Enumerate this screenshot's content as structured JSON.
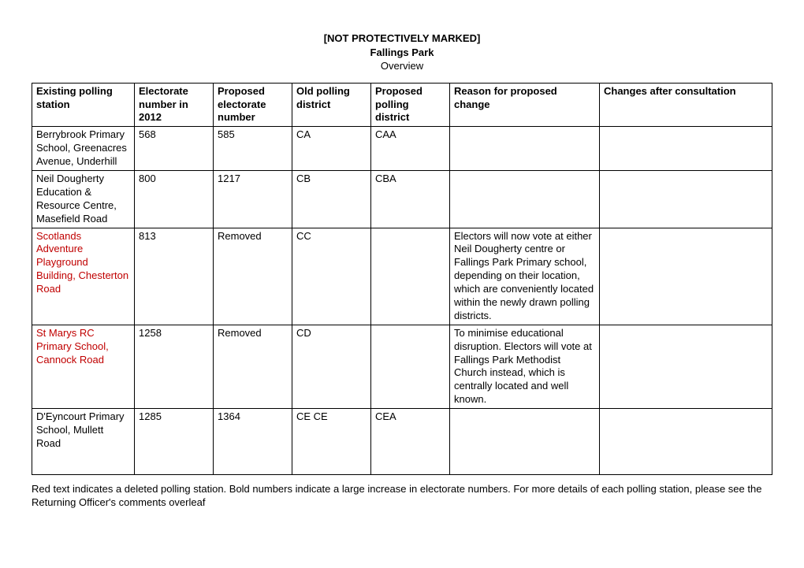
{
  "header": {
    "marking": "[NOT PROTECTIVELY MARKED]",
    "title": "Fallings Park",
    "subtitle": "Overview"
  },
  "columns": [
    "Existing polling station",
    "Electorate number in 2012",
    "Proposed electorate number",
    "Old polling district",
    "Proposed polling district",
    "Reason for proposed change",
    "Changes after consultation"
  ],
  "rows": [
    {
      "station": "Berrybrook Primary School, Greenacres Avenue, Underhill",
      "station_red": false,
      "elec2012": "568",
      "proposed": "585",
      "old": "CA",
      "newdist": "CAA",
      "reason": "",
      "changes": ""
    },
    {
      "station": "Neil Dougherty Education & Resource Centre, Masefield Road",
      "station_red": false,
      "elec2012": "800",
      "proposed": "1217",
      "old": "CB",
      "newdist": "CBA",
      "reason": "",
      "changes": ""
    },
    {
      "station": "Scotlands Adventure Playground Building, Chesterton Road",
      "station_red": true,
      "elec2012": "813",
      "proposed": "Removed",
      "old": "CC",
      "newdist": "",
      "reason": "Electors will now vote at either Neil Dougherty centre or Fallings Park Primary school, depending on their location, which are conveniently located within the newly drawn polling districts.",
      "changes": ""
    },
    {
      "station": "St Marys RC Primary School, Cannock Road",
      "station_red": true,
      "elec2012": "1258",
      "proposed": "Removed",
      "old": "CD",
      "newdist": "",
      "reason": "To minimise educational disruption. Electors will vote at Fallings Park Methodist Church instead, which is centrally located and well known.",
      "changes": ""
    },
    {
      "station": "D'Eyncourt Primary School, Mullett Road",
      "station_red": false,
      "elec2012": "1285",
      "proposed": "1364",
      "old": "CE CE",
      "newdist": "CEA",
      "reason": "",
      "changes": ""
    }
  ],
  "footnote": "Red text indicates a deleted polling station. Bold numbers indicate a large increase in electorate numbers.  For more details of each polling station, please see the Returning Officer's comments overleaf"
}
